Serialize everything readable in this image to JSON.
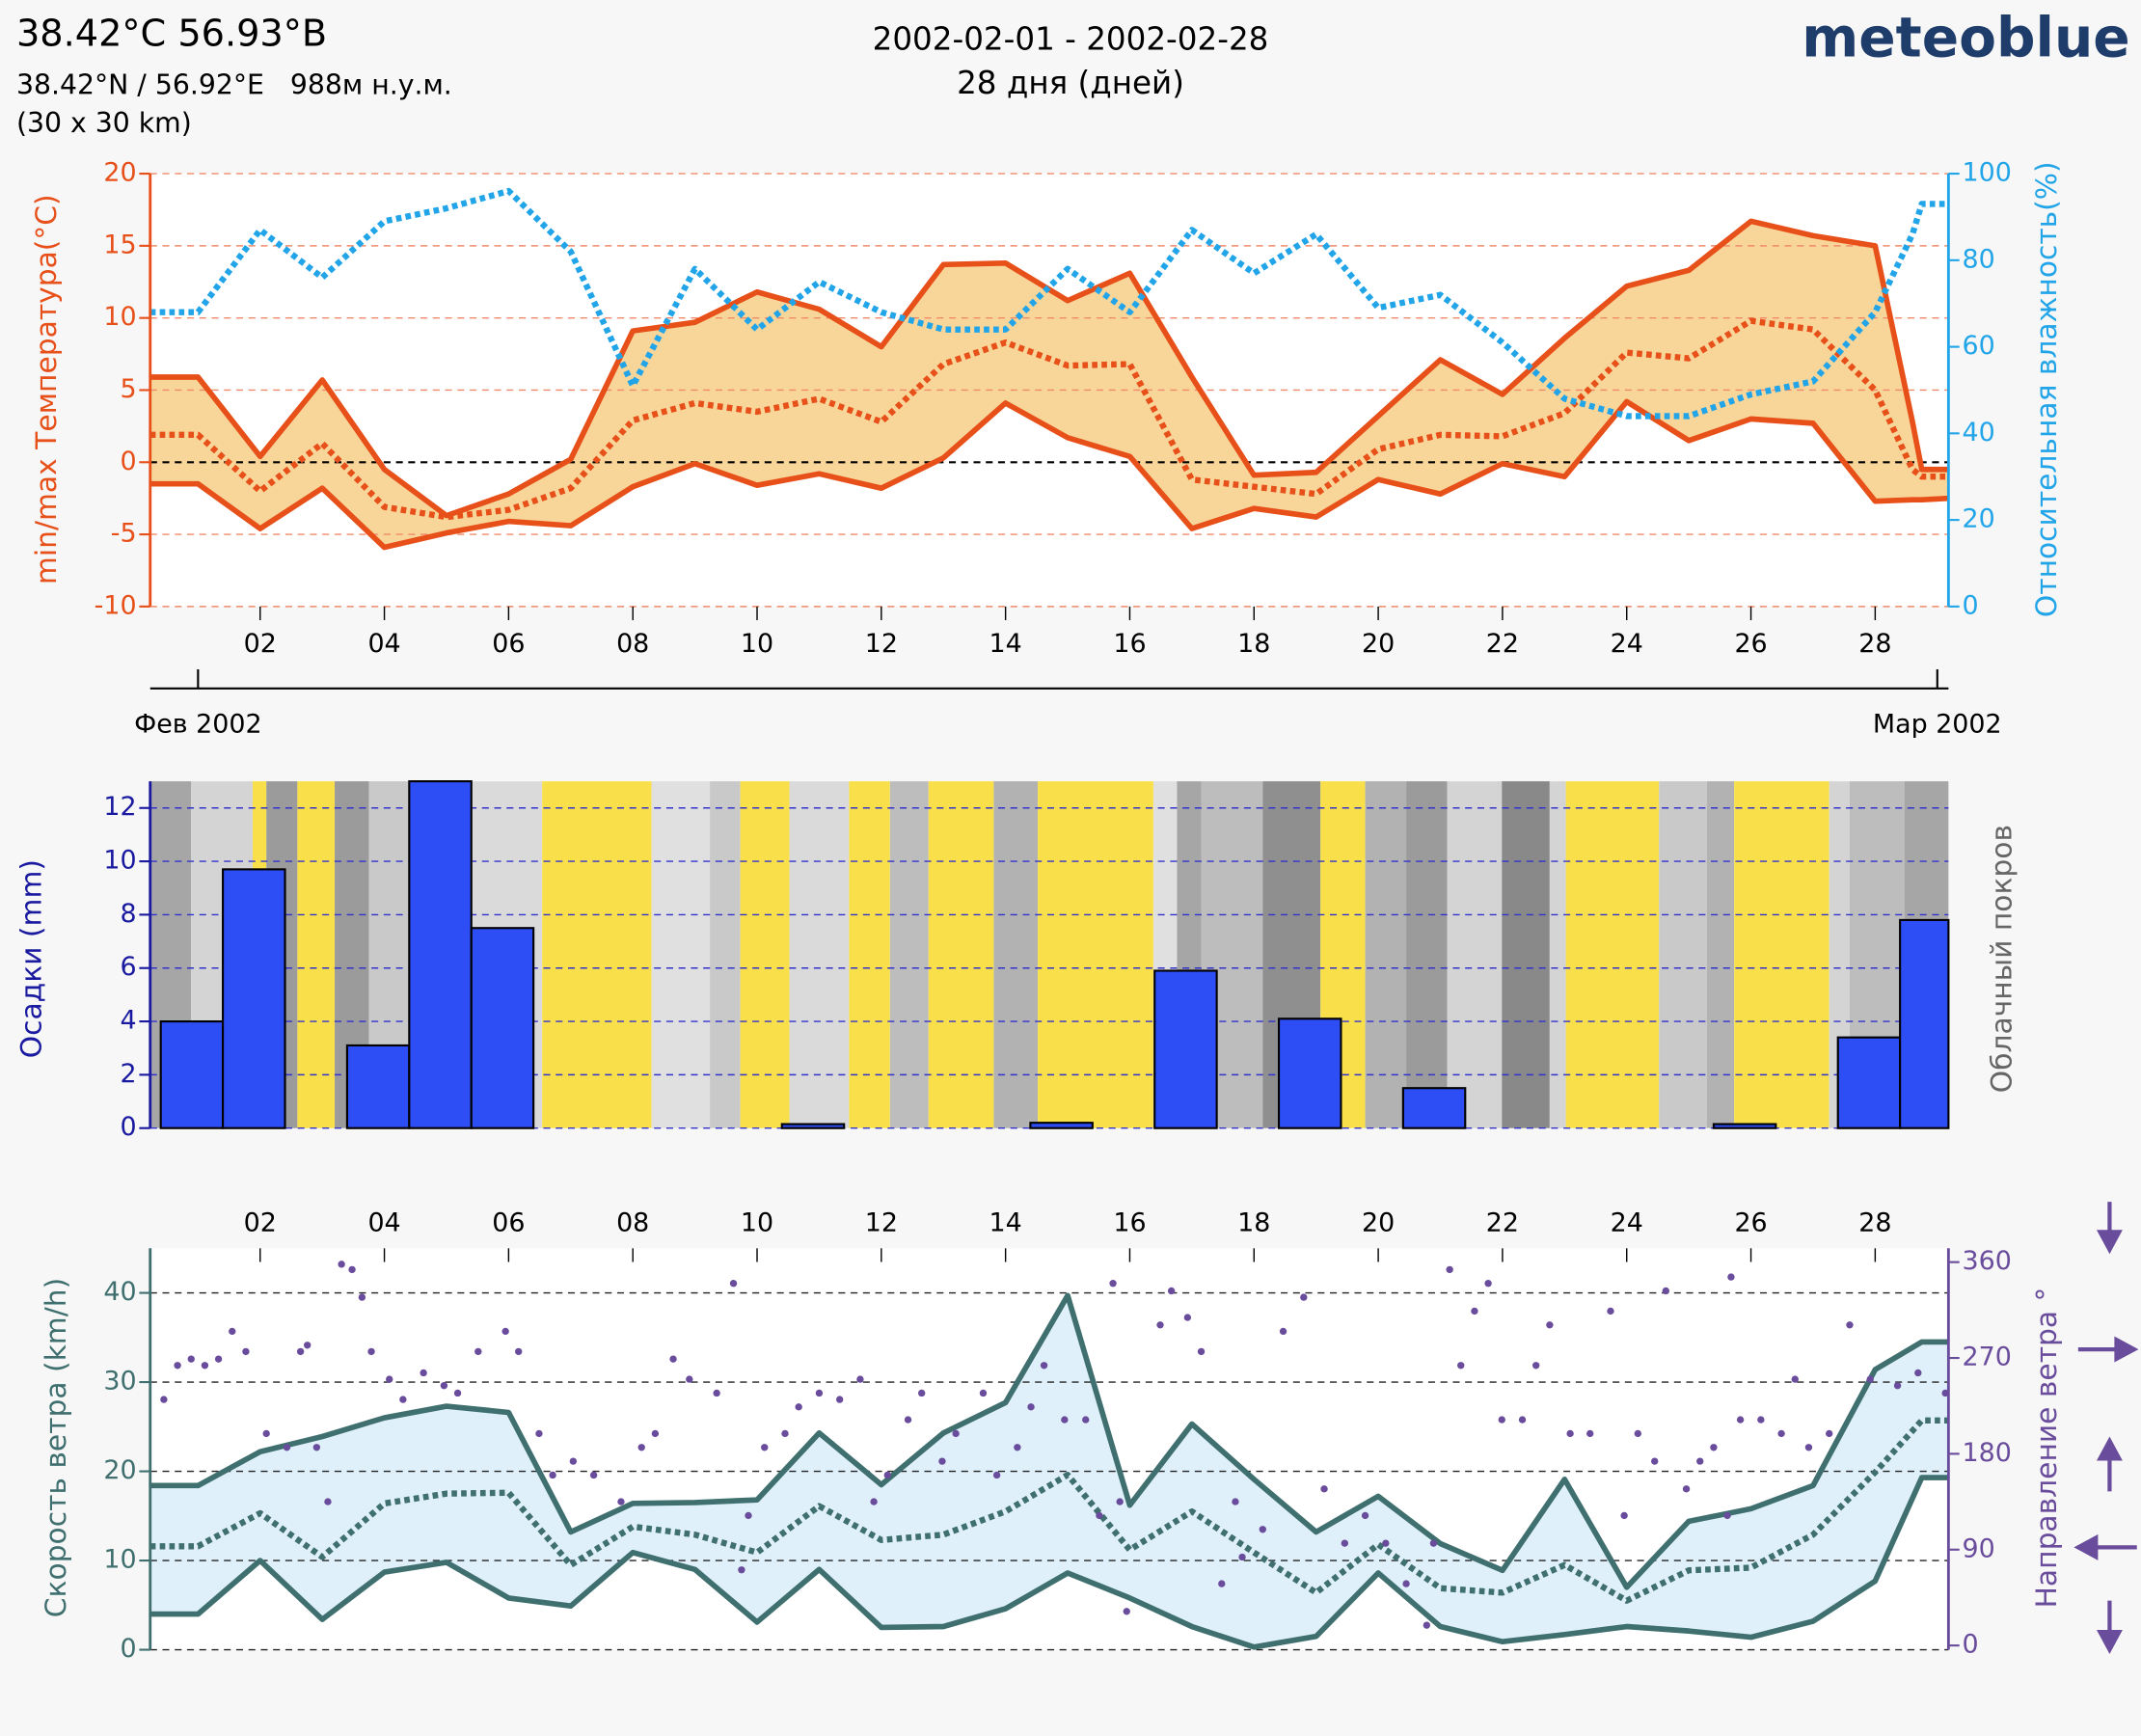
{
  "header": {
    "title": "38.42°C 56.93°В",
    "coords": "38.42°N / 56.92°E   988м н.у.м.",
    "resolution": "(30 x 30 km)",
    "period": "2002-02-01 - 2002-02-28",
    "days": "28 дня (дней)",
    "brand": "meteoblue"
  },
  "chart_data": [
    {
      "type": "line",
      "ylabel": "min/max Температура(°C)",
      "y2label": "Относительная влажность(%)",
      "xlim": [
        0.23,
        29.18
      ],
      "xtick_position": "bottom",
      "xticks": [
        {
          "value": 2,
          "label": "02"
        },
        {
          "value": 4,
          "label": "04"
        },
        {
          "value": 6,
          "label": "06"
        },
        {
          "value": 8,
          "label": "08"
        },
        {
          "value": 10,
          "label": "10"
        },
        {
          "value": 12,
          "label": "12"
        },
        {
          "value": 14,
          "label": "14"
        },
        {
          "value": 16,
          "label": "16"
        },
        {
          "value": 18,
          "label": "18"
        },
        {
          "value": 20,
          "label": "20"
        },
        {
          "value": 22,
          "label": "22"
        },
        {
          "value": 24,
          "label": "24"
        },
        {
          "value": 26,
          "label": "26"
        },
        {
          "value": 28,
          "label": "28"
        }
      ],
      "month_ticks": [
        {
          "value": 1,
          "label": "Фев 2002"
        },
        {
          "value": 29,
          "label": "Мар 2002"
        }
      ],
      "ylim": [
        -10,
        20
      ],
      "yticks": [
        -10,
        -5,
        0,
        5,
        10,
        15,
        20
      ],
      "y2lim": [
        0,
        100
      ],
      "y2ticks": [
        0,
        20,
        40,
        60,
        80,
        100
      ],
      "grid": true,
      "grid_color": "#f08a6a",
      "zero_line": true,
      "y_color": "#e8501a",
      "y2_color": "#22a5e8",
      "fill_between_color": "#f8d69a",
      "x": [
        0.23,
        1,
        2,
        3,
        4,
        5,
        6,
        7,
        8,
        9,
        10,
        11,
        12,
        13,
        14,
        15,
        16,
        17,
        18,
        19,
        20,
        21,
        22,
        23,
        24,
        25,
        26,
        27,
        28,
        28.6,
        28.75,
        29.18
      ],
      "series": [
        {
          "color": "#e8501a",
          "style": "solid",
          "values": [
            5.9,
            5.9,
            0.4,
            5.7,
            -0.5,
            -3.7,
            -2.2,
            0.2,
            9.1,
            9.7,
            11.8,
            10.6,
            8.0,
            13.7,
            13.8,
            11.2,
            13.1,
            5.9,
            -0.9,
            -0.7,
            3.2,
            7.1,
            4.7,
            8.6,
            12.2,
            13.3,
            16.7,
            15.7,
            15.0,
            2.8,
            -0.5,
            -0.5
          ]
        },
        {
          "color": "#e8501a",
          "style": "solid",
          "values": [
            -1.5,
            -1.5,
            -4.6,
            -1.8,
            -5.9,
            -4.9,
            -4.1,
            -4.4,
            -1.7,
            -0.1,
            -1.6,
            -0.8,
            -1.8,
            0.3,
            4.1,
            1.7,
            0.4,
            -4.6,
            -3.2,
            -3.8,
            -1.2,
            -2.2,
            -0.1,
            -1.0,
            4.2,
            1.5,
            3.0,
            2.7,
            -2.7,
            -2.6,
            -2.6,
            -2.5
          ]
        },
        {
          "color": "#e8501a",
          "style": "dotted",
          "values": [
            1.9,
            1.9,
            -2.0,
            1.3,
            -3.1,
            -3.8,
            -3.3,
            -1.8,
            2.9,
            4.1,
            3.5,
            4.4,
            2.8,
            6.8,
            8.3,
            6.7,
            6.8,
            -1.2,
            -1.7,
            -2.2,
            0.9,
            1.9,
            1.8,
            3.4,
            7.6,
            7.2,
            9.8,
            9.2,
            5.0,
            -0.5,
            -1.0,
            -1.0
          ]
        },
        {
          "color": "#22a5e8",
          "style": "dotted",
          "axis": "y2",
          "values": [
            68,
            68,
            87,
            76,
            89,
            92,
            96,
            82,
            51,
            78,
            64,
            75,
            68,
            64,
            64,
            78,
            68,
            87,
            77,
            86,
            69,
            72,
            61,
            48,
            44,
            44,
            49,
            52,
            68,
            86,
            93,
            93
          ]
        }
      ]
    },
    {
      "type": "histogram",
      "ylabel": "Осадки (mm)",
      "y2label": "Облачный покров",
      "xlim": [
        0.23,
        29.18
      ],
      "ylim": [
        0,
        13
      ],
      "yticks": [
        0,
        2,
        4,
        6,
        8,
        10,
        12
      ],
      "grid": true,
      "grid_color": "#3333cc",
      "y_color": "#1a1aa0",
      "y2_color": "#666666",
      "color": "#2d4ef5",
      "sun_color": "#f9e04b",
      "bins": [
        0.4,
        1.4,
        2.4,
        3.4,
        4.4,
        5.4,
        6.4,
        7.4,
        8.4,
        9.4,
        10.4,
        11.4,
        12.4,
        13.4,
        14.4,
        15.4,
        16.4,
        17.4,
        18.4,
        19.4,
        20.4,
        21.4,
        22.4,
        23.4,
        24.4,
        25.4,
        26.4,
        27.4,
        28.4,
        29.18
      ],
      "values": [
        4.0,
        9.7,
        0,
        3.1,
        13.0,
        7.5,
        0,
        0,
        0,
        0,
        0.15,
        0,
        0,
        0,
        0.2,
        0,
        5.9,
        0,
        4.1,
        0,
        1.5,
        0,
        0,
        0,
        0,
        0.15,
        0,
        3.4,
        7.8
      ],
      "cloud_bins": [
        0.23,
        0.89,
        1.88,
        2.1,
        2.6,
        3.2,
        3.75,
        4.41,
        5.4,
        6.54,
        8.3,
        9.24,
        9.73,
        10.52,
        11.48,
        12.14,
        12.76,
        13.81,
        14.52,
        16.38,
        16.76,
        17.15,
        18.14,
        19.07,
        19.79,
        20.45,
        21.11,
        21.99,
        22.76,
        23.02,
        24.52,
        25.29,
        25.73,
        27.26,
        27.59,
        28.47,
        29.18
      ],
      "cloud_values": [
        60,
        20,
        0,
        70,
        0,
        70,
        30,
        20,
        15,
        0,
        10,
        30,
        0,
        15,
        0,
        40,
        0,
        50,
        0,
        10,
        60,
        40,
        80,
        0,
        50,
        70,
        20,
        85,
        20,
        0,
        30,
        50,
        0,
        20,
        40,
        60
      ]
    },
    {
      "type": "line",
      "ylabel": "Скорость ветра (km/h)",
      "y2label": "Направление ветра °",
      "xlim": [
        0.23,
        29.18
      ],
      "xtick_position": "top",
      "xticks": [
        {
          "value": 2,
          "label": "02"
        },
        {
          "value": 4,
          "label": "04"
        },
        {
          "value": 6,
          "label": "06"
        },
        {
          "value": 8,
          "label": "08"
        },
        {
          "value": 10,
          "label": "10"
        },
        {
          "value": 12,
          "label": "12"
        },
        {
          "value": 14,
          "label": "14"
        },
        {
          "value": 16,
          "label": "16"
        },
        {
          "value": 18,
          "label": "18"
        },
        {
          "value": 20,
          "label": "20"
        },
        {
          "value": 22,
          "label": "22"
        },
        {
          "value": 24,
          "label": "24"
        },
        {
          "value": 26,
          "label": "26"
        },
        {
          "value": 28,
          "label": "28"
        }
      ],
      "ylim": [
        0,
        45
      ],
      "yticks": [
        0,
        10,
        20,
        30,
        40
      ],
      "y2lim": [
        -4,
        373
      ],
      "y2ticks": [
        0,
        90,
        180,
        270,
        360
      ],
      "grid": true,
      "grid_color": "#222222",
      "y_color": "#3f6f6f",
      "y2_color": "#6a4c9c",
      "fill_between_color": "#dff0fa",
      "x": [
        0.23,
        1,
        2,
        3,
        4,
        5,
        6,
        7,
        8,
        9,
        10,
        11,
        12,
        13,
        14,
        15,
        16,
        17,
        18,
        19,
        20,
        21,
        22,
        23,
        24,
        25,
        26,
        27,
        28,
        28.75,
        29.18
      ],
      "series": [
        {
          "color": "#3f6f6f",
          "style": "solid",
          "values": [
            18.4,
            18.4,
            22.2,
            23.9,
            26.0,
            27.3,
            26.6,
            13.2,
            16.4,
            16.5,
            16.8,
            24.3,
            18.5,
            24.3,
            27.7,
            39.7,
            16.2,
            25.3,
            19.1,
            13.2,
            17.2,
            11.9,
            8.9,
            19.1,
            7.0,
            14.4,
            15.8,
            18.4,
            31.4,
            34.5,
            34.5
          ]
        },
        {
          "color": "#3f6f6f",
          "style": "solid",
          "values": [
            4.0,
            4.0,
            10.0,
            3.4,
            8.7,
            9.8,
            5.8,
            4.9,
            10.9,
            9.0,
            3.1,
            9.0,
            2.5,
            2.6,
            4.6,
            8.6,
            5.8,
            2.6,
            0.3,
            1.5,
            8.6,
            2.6,
            0.9,
            1.7,
            2.6,
            2.1,
            1.4,
            3.2,
            7.7,
            19.3,
            19.3
          ]
        },
        {
          "color": "#3f6f6f",
          "style": "dotted",
          "values": [
            11.6,
            11.6,
            15.3,
            10.4,
            16.4,
            17.5,
            17.6,
            9.5,
            13.8,
            12.9,
            10.9,
            16.1,
            12.3,
            12.9,
            15.5,
            19.6,
            11.2,
            15.5,
            10.9,
            6.4,
            11.8,
            6.9,
            6.4,
            9.5,
            5.5,
            8.9,
            9.2,
            12.9,
            19.9,
            25.7,
            25.7
          ]
        },
        {
          "color": "#6a4c9c",
          "style": "markers",
          "axis": "y2",
          "x": [
            0.45,
            0.67,
            0.89,
            1.11,
            1.33,
            1.55,
            1.77,
            2.1,
            2.43,
            2.65,
            2.76,
            2.91,
            3.09,
            3.31,
            3.48,
            3.64,
            3.79,
            4.08,
            4.3,
            4.63,
            4.96,
            5.18,
            5.51,
            5.95,
            6.16,
            6.49,
            6.71,
            7.04,
            7.37,
            7.81,
            8.14,
            8.36,
            8.65,
            8.91,
            9.35,
            9.62,
            9.75,
            9.86,
            10.12,
            10.45,
            10.67,
            11.0,
            11.33,
            11.66,
            11.88,
            12.1,
            12.43,
            12.65,
            12.98,
            13.2,
            13.64,
            13.86,
            14.19,
            14.41,
            14.62,
            14.95,
            15.29,
            15.51,
            15.73,
            15.84,
            15.95,
            16.49,
            16.67,
            16.93,
            17.15,
            17.48,
            17.7,
            17.81,
            18.14,
            18.47,
            18.8,
            19.13,
            19.46,
            19.79,
            20.12,
            20.45,
            20.78,
            20.89,
            21.15,
            21.33,
            21.55,
            21.77,
            21.99,
            22.32,
            22.54,
            22.76,
            23.09,
            23.41,
            23.74,
            23.96,
            24.18,
            24.45,
            24.63,
            24.96,
            25.18,
            25.4,
            25.62,
            25.68,
            25.83,
            26.16,
            26.49,
            26.71,
            26.93,
            27.26,
            27.59,
            27.92,
            28.36,
            28.69,
            29.13
          ],
          "values": [
            231,
            263,
            269,
            263,
            269,
            295,
            276,
            199,
            186,
            276,
            282,
            186,
            135,
            358,
            353,
            327,
            276,
            250,
            231,
            256,
            244,
            237,
            276,
            295,
            276,
            199,
            160,
            173,
            160,
            135,
            186,
            199,
            269,
            250,
            237,
            340,
            71,
            122,
            186,
            199,
            224,
            237,
            231,
            250,
            135,
            160,
            212,
            237,
            173,
            199,
            237,
            160,
            186,
            224,
            263,
            212,
            212,
            122,
            340,
            135,
            32,
            301,
            333,
            308,
            276,
            58,
            135,
            83,
            109,
            295,
            327,
            147,
            96,
            122,
            96,
            58,
            19,
            96,
            353,
            263,
            314,
            340,
            212,
            212,
            263,
            301,
            199,
            199,
            314,
            122,
            199,
            173,
            333,
            147,
            173,
            186,
            122,
            346,
            212,
            212,
            199,
            250,
            186,
            199,
            301,
            250,
            244,
            256,
            237
          ]
        }
      ]
    }
  ]
}
